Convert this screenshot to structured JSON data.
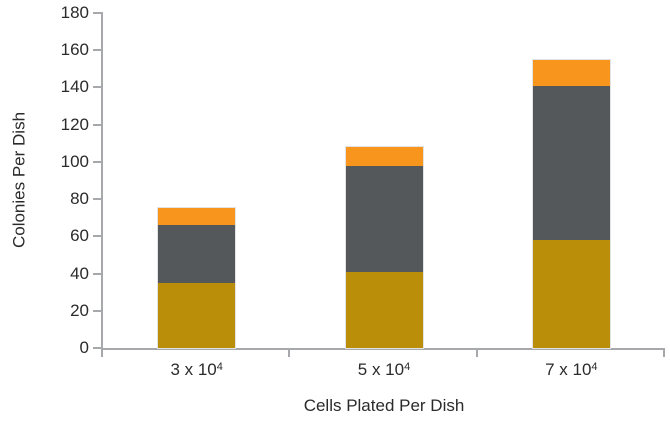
{
  "chart_data": {
    "type": "bar",
    "stacked": true,
    "title": "",
    "xlabel": "Cells Plated Per Dish",
    "ylabel": "Colonies Per Dish",
    "categories": [
      {
        "display": "3 x 10⁴",
        "label_base": "3 x 10",
        "label_exp": "4"
      },
      {
        "display": "5 x 10⁴",
        "label_base": "5 x 10",
        "label_exp": "4"
      },
      {
        "display": "7 x 10⁴",
        "label_base": "7 x 10",
        "label_exp": "4"
      }
    ],
    "series": [
      {
        "name": "bottom-gold-segment",
        "color": "#BA8E08",
        "values": [
          35,
          41,
          58
        ]
      },
      {
        "name": "middle-gray-segment",
        "color": "#54585A",
        "values": [
          31,
          57,
          83
        ]
      },
      {
        "name": "top-orange-segment",
        "color": "#F8951D",
        "values": [
          9,
          10,
          14
        ]
      }
    ],
    "stack_totals": [
      75,
      108,
      155
    ],
    "ylim": [
      0,
      180
    ],
    "yticks": [
      0,
      20,
      40,
      60,
      80,
      100,
      120,
      140,
      160,
      180
    ],
    "grid": false,
    "legend": "none",
    "colors": {
      "axis": "#A6A8AB",
      "text": "#2B2B2B",
      "gold": "#BA8E08",
      "gray": "#54585A",
      "orange": "#F8951D"
    }
  }
}
